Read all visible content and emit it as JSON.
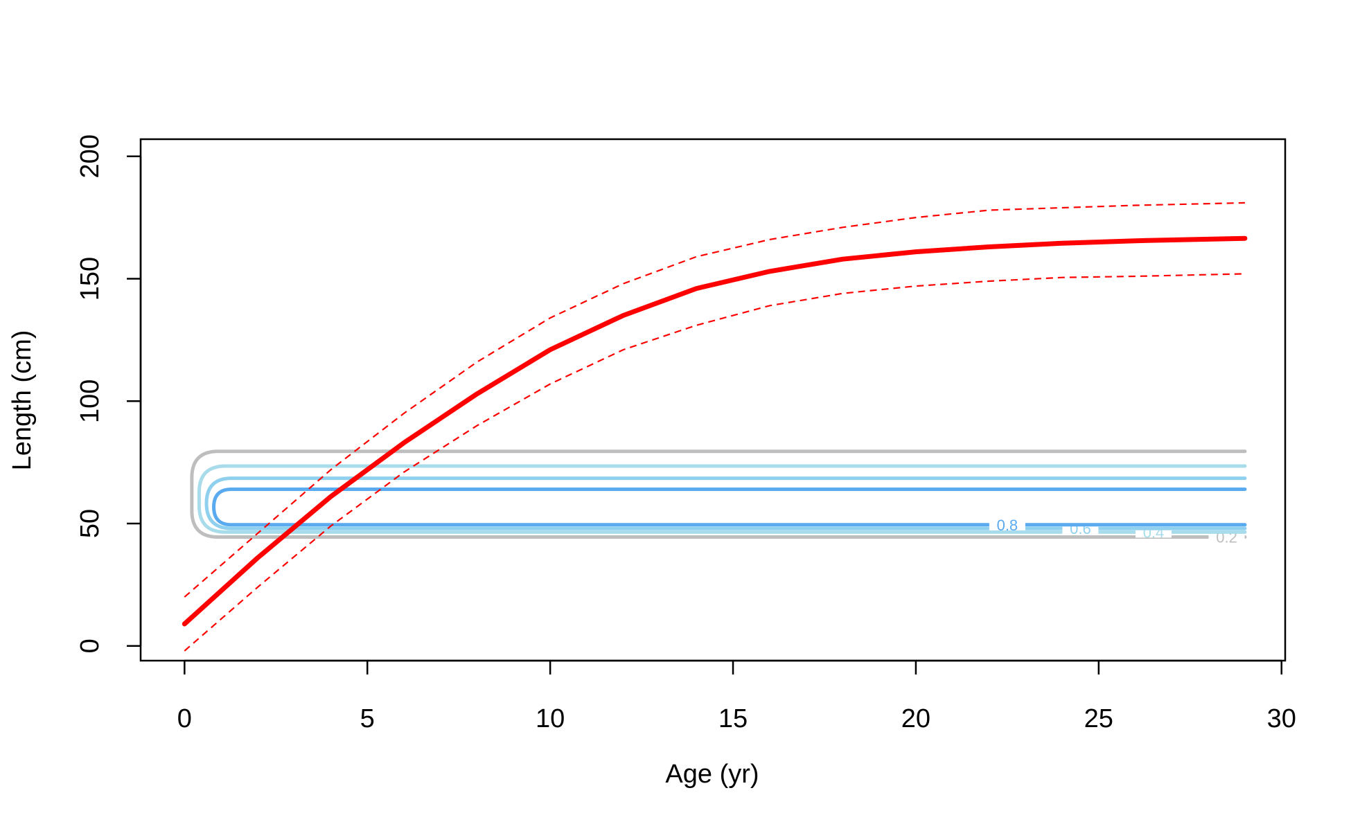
{
  "chart_data": {
    "type": "line",
    "title": "",
    "xlabel": "Age (yr)",
    "ylabel": "Length (cm)",
    "xlim": [
      -1.2,
      30.1
    ],
    "ylim": [
      -6,
      207
    ],
    "xticks": [
      0,
      5,
      10,
      15,
      20,
      25,
      30
    ],
    "yticks": [
      0,
      50,
      100,
      150,
      200
    ],
    "grid": false,
    "legend": "none",
    "series": [
      {
        "style": "solid",
        "color": "#ff0000",
        "x": [
          0,
          2,
          4,
          6,
          8,
          10,
          12,
          14,
          16,
          18,
          20,
          22,
          24,
          26,
          29
        ],
        "y": [
          9,
          36,
          61,
          83,
          103,
          121,
          135,
          146,
          153,
          158,
          161,
          163,
          164.5,
          165.5,
          166.5
        ]
      },
      {
        "style": "dashed",
        "color": "#ff0000",
        "x": [
          0,
          2,
          4,
          6,
          8,
          10,
          12,
          14,
          16,
          18,
          20,
          22,
          24,
          26,
          29
        ],
        "y": [
          20,
          46,
          72,
          95,
          116,
          134,
          148,
          159,
          166,
          171,
          175,
          178,
          179,
          180,
          181
        ]
      },
      {
        "style": "dashed",
        "color": "#ff0000",
        "x": [
          0,
          2,
          4,
          6,
          8,
          10,
          12,
          14,
          16,
          18,
          20,
          22,
          24,
          26,
          29
        ],
        "y": [
          -2,
          24,
          49,
          71,
          90,
          107,
          121,
          131,
          139,
          144,
          147,
          149,
          150.5,
          151,
          152
        ]
      }
    ],
    "contours": [
      {
        "level": "0.2",
        "color": "#bebebe",
        "x": [
          0.2,
          29
        ],
        "y": [
          44.5,
          79.5
        ],
        "label_x": 28.5
      },
      {
        "level": "0.4",
        "color": "#a8dcea",
        "x": [
          0.4,
          29
        ],
        "y": [
          46.5,
          73.5
        ],
        "label_x": 26.5
      },
      {
        "level": "0.6",
        "color": "#8ed0ee",
        "x": [
          0.6,
          29
        ],
        "y": [
          48,
          68.5
        ],
        "label_x": 24.5
      },
      {
        "level": "0.8",
        "color": "#5aaaf0",
        "x": [
          0.8,
          29
        ],
        "y": [
          49.5,
          64
        ],
        "label_x": 22.5
      }
    ]
  }
}
